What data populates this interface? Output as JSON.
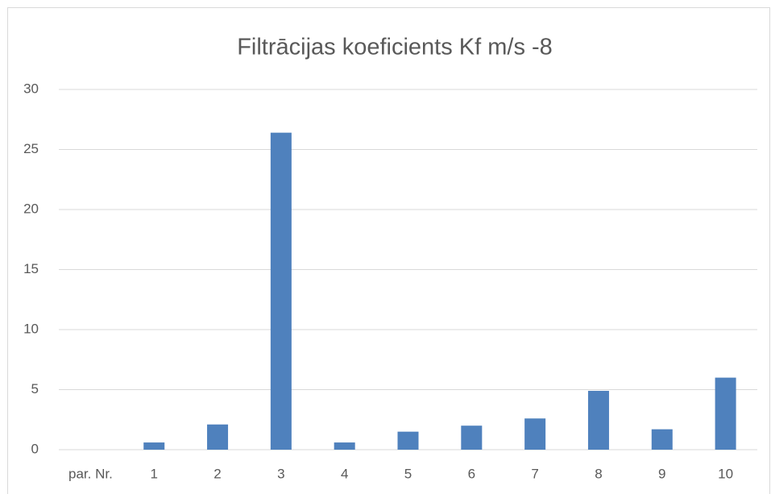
{
  "chart_data": {
    "type": "bar",
    "title": "Filtrācijas koeficients Kf m/s -8",
    "categories": [
      "par. Nr.",
      "1",
      "2",
      "3",
      "4",
      "5",
      "6",
      "7",
      "8",
      "9",
      "10"
    ],
    "values": [
      null,
      0.6,
      2.1,
      26.4,
      0.6,
      1.5,
      2.0,
      2.6,
      4.9,
      1.7,
      6.0
    ],
    "color": "#4f81bd",
    "ylim": [
      0,
      30
    ],
    "yticks": [
      0,
      5,
      10,
      15,
      20,
      25,
      30
    ],
    "grid": true
  }
}
